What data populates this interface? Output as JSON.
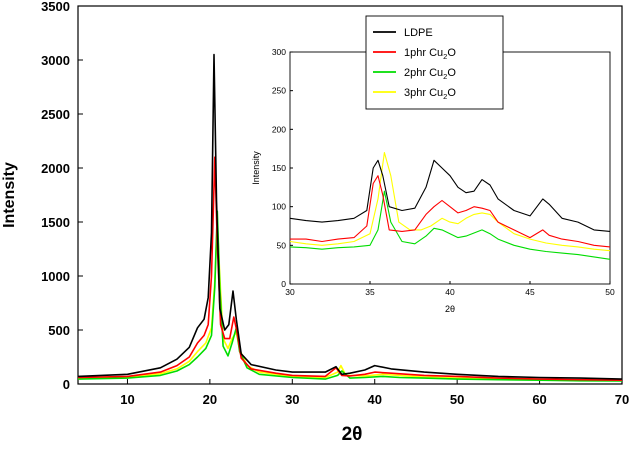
{
  "chart_data": [
    {
      "id": "main",
      "type": "line",
      "title": "",
      "xlabel": "2θ",
      "ylabel": "Intensity",
      "xlim": [
        4,
        70
      ],
      "ylim": [
        0,
        3500
      ],
      "xticks": [
        "10",
        "20",
        "30",
        "40",
        "50",
        "60",
        "70"
      ],
      "yticks": [
        "0",
        "500",
        "1000",
        "1500",
        "2000",
        "2500",
        "3000",
        "3500"
      ],
      "series": [
        {
          "name": "LDPE",
          "color": "#000000",
          "points": [
            [
              4,
              70
            ],
            [
              10,
              90
            ],
            [
              14,
              150
            ],
            [
              16,
              230
            ],
            [
              17.5,
              340
            ],
            [
              18.5,
              520
            ],
            [
              19.3,
              600
            ],
            [
              19.8,
              800
            ],
            [
              20.2,
              1400
            ],
            [
              20.5,
              3050
            ],
            [
              20.8,
              1700
            ],
            [
              21.2,
              700
            ],
            [
              21.8,
              500
            ],
            [
              22.3,
              550
            ],
            [
              22.8,
              860
            ],
            [
              23.2,
              600
            ],
            [
              23.8,
              280
            ],
            [
              25,
              180
            ],
            [
              28,
              130
            ],
            [
              30,
              110
            ],
            [
              34,
              110
            ],
            [
              35.3,
              160
            ],
            [
              36,
              90
            ],
            [
              37,
              100
            ],
            [
              38.8,
              130
            ],
            [
              40,
              170
            ],
            [
              42,
              140
            ],
            [
              46,
              110
            ],
            [
              50,
              90
            ],
            [
              55,
              70
            ],
            [
              60,
              60
            ],
            [
              65,
              55
            ],
            [
              70,
              45
            ]
          ]
        },
        {
          "name": "1phr Cu2O",
          "color": "#ff0000",
          "points": [
            [
              4,
              60
            ],
            [
              10,
              70
            ],
            [
              14,
              110
            ],
            [
              16,
              170
            ],
            [
              17.5,
              250
            ],
            [
              18.5,
              380
            ],
            [
              19.3,
              450
            ],
            [
              19.8,
              550
            ],
            [
              20.2,
              1000
            ],
            [
              20.6,
              2100
            ],
            [
              20.9,
              1300
            ],
            [
              21.3,
              550
            ],
            [
              21.8,
              420
            ],
            [
              22.4,
              420
            ],
            [
              22.9,
              620
            ],
            [
              23.3,
              480
            ],
            [
              23.8,
              240
            ],
            [
              25,
              140
            ],
            [
              28,
              100
            ],
            [
              30,
              80
            ],
            [
              34,
              70
            ],
            [
              35.3,
              150
            ],
            [
              36,
              80
            ],
            [
              37,
              75
            ],
            [
              38.8,
              90
            ],
            [
              40,
              110
            ],
            [
              42,
              100
            ],
            [
              46,
              80
            ],
            [
              50,
              70
            ],
            [
              55,
              55
            ],
            [
              60,
              45
            ],
            [
              65,
              40
            ],
            [
              70,
              35
            ]
          ]
        },
        {
          "name": "2phr Cu2O",
          "color": "#00dd00",
          "points": [
            [
              4,
              45
            ],
            [
              10,
              55
            ],
            [
              14,
              80
            ],
            [
              16,
              120
            ],
            [
              17.5,
              180
            ],
            [
              18.5,
              250
            ],
            [
              19.5,
              330
            ],
            [
              20.2,
              450
            ],
            [
              20.6,
              900
            ],
            [
              20.9,
              1600
            ],
            [
              21.2,
              900
            ],
            [
              21.6,
              350
            ],
            [
              22.2,
              260
            ],
            [
              22.7,
              380
            ],
            [
              23.2,
              520
            ],
            [
              23.6,
              300
            ],
            [
              24.5,
              150
            ],
            [
              26,
              90
            ],
            [
              30,
              60
            ],
            [
              34,
              45
            ],
            [
              35.5,
              80
            ],
            [
              36,
              120
            ],
            [
              37,
              55
            ],
            [
              38.8,
              60
            ],
            [
              41,
              70
            ],
            [
              43,
              60
            ],
            [
              46,
              55
            ],
            [
              50,
              45
            ],
            [
              55,
              40
            ],
            [
              60,
              35
            ],
            [
              65,
              30
            ],
            [
              70,
              28
            ]
          ]
        },
        {
          "name": "3phr Cu2O",
          "color": "#ffff00",
          "points": [
            [
              4,
              55
            ],
            [
              10,
              60
            ],
            [
              14,
              95
            ],
            [
              16,
              140
            ],
            [
              17.5,
              210
            ],
            [
              18.5,
              300
            ],
            [
              19.5,
              380
            ],
            [
              20.2,
              520
            ],
            [
              20.6,
              950
            ],
            [
              20.9,
              1500
            ],
            [
              21.2,
              1000
            ],
            [
              21.6,
              420
            ],
            [
              22.2,
              330
            ],
            [
              22.7,
              420
            ],
            [
              23.2,
              480
            ],
            [
              23.6,
              320
            ],
            [
              24.5,
              170
            ],
            [
              26,
              110
            ],
            [
              30,
              70
            ],
            [
              34,
              60
            ],
            [
              35.5,
              110
            ],
            [
              35.9,
              170
            ],
            [
              36.5,
              80
            ],
            [
              38.8,
              75
            ],
            [
              41,
              90
            ],
            [
              43,
              80
            ],
            [
              46,
              65
            ],
            [
              50,
              55
            ],
            [
              55,
              45
            ],
            [
              60,
              40
            ],
            [
              65,
              35
            ],
            [
              70,
              32
            ]
          ]
        }
      ]
    },
    {
      "id": "inset",
      "type": "line",
      "title": "",
      "xlabel": "2θ",
      "ylabel": "Intensity",
      "xlim": [
        30,
        50
      ],
      "ylim": [
        0,
        300
      ],
      "xticks": [
        "30",
        "35",
        "40",
        "45",
        "50"
      ],
      "yticks": [
        "0",
        "50",
        "100",
        "150",
        "200",
        "250",
        "300"
      ],
      "legend_position": "top",
      "legend": [
        {
          "label": "LDPE",
          "sub": "",
          "suffix": "",
          "color": "#000000"
        },
        {
          "label": "1phr Cu",
          "sub": "2",
          "suffix": "O",
          "color": "#ff0000"
        },
        {
          "label": "2phr Cu",
          "sub": "2",
          "suffix": "O",
          "color": "#00dd00"
        },
        {
          "label": "3phr Cu",
          "sub": "2",
          "suffix": "O",
          "color": "#ffff00"
        }
      ],
      "series": [
        {
          "name": "LDPE",
          "color": "#000000",
          "points": [
            [
              30,
              85
            ],
            [
              31,
              82
            ],
            [
              32,
              80
            ],
            [
              33,
              82
            ],
            [
              34,
              85
            ],
            [
              34.8,
              95
            ],
            [
              35.2,
              150
            ],
            [
              35.5,
              160
            ],
            [
              35.8,
              140
            ],
            [
              36.2,
              100
            ],
            [
              37,
              95
            ],
            [
              37.8,
              98
            ],
            [
              38.5,
              125
            ],
            [
              39,
              160
            ],
            [
              39.5,
              150
            ],
            [
              40,
              140
            ],
            [
              40.5,
              125
            ],
            [
              41,
              118
            ],
            [
              41.5,
              120
            ],
            [
              42,
              135
            ],
            [
              42.5,
              128
            ],
            [
              43,
              110
            ],
            [
              44,
              95
            ],
            [
              45,
              88
            ],
            [
              45.8,
              110
            ],
            [
              46.2,
              103
            ],
            [
              47,
              85
            ],
            [
              48,
              80
            ],
            [
              49,
              70
            ],
            [
              50,
              68
            ]
          ]
        },
        {
          "name": "1phr Cu2O",
          "color": "#ff0000",
          "points": [
            [
              30,
              58
            ],
            [
              31,
              58
            ],
            [
              32,
              55
            ],
            [
              33,
              58
            ],
            [
              34,
              60
            ],
            [
              34.8,
              75
            ],
            [
              35.2,
              130
            ],
            [
              35.5,
              140
            ],
            [
              35.8,
              115
            ],
            [
              36.2,
              70
            ],
            [
              37,
              68
            ],
            [
              37.8,
              70
            ],
            [
              38.5,
              90
            ],
            [
              39,
              100
            ],
            [
              39.5,
              108
            ],
            [
              40,
              100
            ],
            [
              40.5,
              92
            ],
            [
              41,
              95
            ],
            [
              41.5,
              100
            ],
            [
              42,
              98
            ],
            [
              42.5,
              95
            ],
            [
              43,
              80
            ],
            [
              44,
              70
            ],
            [
              45,
              60
            ],
            [
              45.8,
              70
            ],
            [
              46.2,
              63
            ],
            [
              47,
              58
            ],
            [
              48,
              55
            ],
            [
              49,
              50
            ],
            [
              50,
              48
            ]
          ]
        },
        {
          "name": "2phr Cu2O",
          "color": "#00dd00",
          "points": [
            [
              30,
              48
            ],
            [
              31,
              47
            ],
            [
              32,
              45
            ],
            [
              33,
              47
            ],
            [
              34,
              48
            ],
            [
              35,
              50
            ],
            [
              35.5,
              70
            ],
            [
              35.9,
              120
            ],
            [
              36.3,
              80
            ],
            [
              37,
              55
            ],
            [
              37.8,
              52
            ],
            [
              38.5,
              62
            ],
            [
              39,
              72
            ],
            [
              39.5,
              70
            ],
            [
              40,
              65
            ],
            [
              40.5,
              60
            ],
            [
              41,
              62
            ],
            [
              41.5,
              66
            ],
            [
              42,
              70
            ],
            [
              42.5,
              65
            ],
            [
              43,
              58
            ],
            [
              44,
              50
            ],
            [
              45,
              45
            ],
            [
              46,
              42
            ],
            [
              47,
              40
            ],
            [
              48,
              38
            ],
            [
              49,
              35
            ],
            [
              50,
              32
            ]
          ]
        },
        {
          "name": "3phr Cu2O",
          "color": "#ffff00",
          "points": [
            [
              30,
              55
            ],
            [
              31,
              52
            ],
            [
              32,
              50
            ],
            [
              33,
              52
            ],
            [
              34,
              55
            ],
            [
              35,
              65
            ],
            [
              35.5,
              110
            ],
            [
              35.9,
              170
            ],
            [
              36.3,
              140
            ],
            [
              36.8,
              80
            ],
            [
              37.5,
              70
            ],
            [
              38.2,
              70
            ],
            [
              38.8,
              75
            ],
            [
              39.5,
              85
            ],
            [
              40,
              80
            ],
            [
              40.5,
              78
            ],
            [
              41,
              85
            ],
            [
              41.5,
              90
            ],
            [
              42,
              92
            ],
            [
              42.5,
              90
            ],
            [
              43,
              80
            ],
            [
              44,
              65
            ],
            [
              45,
              58
            ],
            [
              46,
              53
            ],
            [
              47,
              50
            ],
            [
              48,
              48
            ],
            [
              49,
              45
            ],
            [
              50,
              43
            ]
          ]
        }
      ]
    }
  ]
}
